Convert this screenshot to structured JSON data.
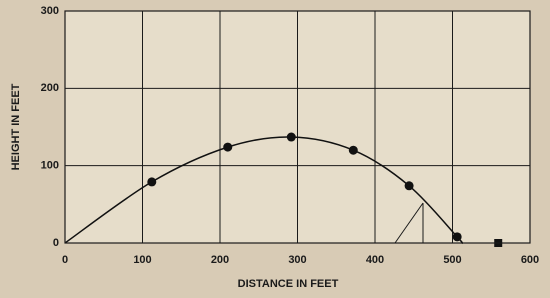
{
  "chart_data": {
    "type": "line",
    "xlabel": "DISTANCE IN FEET",
    "ylabel": "HEIGHT IN FEET",
    "xlim": [
      0,
      600
    ],
    "ylim": [
      0,
      300
    ],
    "xticks": [
      0,
      100,
      200,
      300,
      400,
      500,
      600
    ],
    "yticks": [
      0,
      100,
      200,
      300
    ],
    "grid": true,
    "series": [
      {
        "style": "curve",
        "color": "#111111",
        "x": [
          0,
          112,
          210,
          292,
          372,
          444,
          506,
          512
        ],
        "values": [
          0,
          79,
          124,
          137,
          120,
          74,
          8,
          0
        ]
      },
      {
        "style": "dots",
        "color": "#111111",
        "x": [
          112,
          210,
          292,
          372,
          444,
          506
        ],
        "values": [
          79,
          124,
          137,
          120,
          74,
          8
        ]
      },
      {
        "style": "square",
        "color": "#111111",
        "x": [
          559
        ],
        "values": [
          0
        ]
      }
    ]
  }
}
